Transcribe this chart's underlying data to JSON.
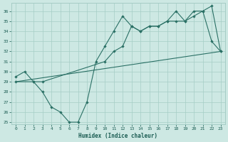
{
  "xlabel": "Humidex (Indice chaleur)",
  "bg_color": "#cde8e3",
  "grid_color": "#a5cdc6",
  "line_color": "#2a7065",
  "xlim": [
    -0.5,
    23.5
  ],
  "ylim": [
    24.8,
    36.8
  ],
  "xticks": [
    0,
    1,
    2,
    3,
    4,
    5,
    6,
    7,
    8,
    9,
    10,
    11,
    12,
    13,
    14,
    15,
    16,
    17,
    18,
    19,
    20,
    21,
    22,
    23
  ],
  "yticks": [
    25,
    26,
    27,
    28,
    29,
    30,
    31,
    32,
    33,
    34,
    35,
    36
  ],
  "curve1_x": [
    0,
    1,
    2,
    3,
    4,
    5,
    6,
    7,
    8,
    9,
    10,
    11,
    12,
    13,
    14,
    15,
    16,
    17,
    18,
    19,
    20,
    21,
    22,
    23
  ],
  "curve1_y": [
    29.5,
    30.0,
    29.0,
    28.0,
    26.5,
    26.0,
    25.0,
    25.0,
    27.0,
    31.0,
    32.5,
    34.0,
    35.5,
    34.5,
    34.0,
    34.5,
    34.5,
    35.0,
    36.0,
    35.0,
    36.0,
    36.0,
    33.0,
    32.0
  ],
  "curve2_x": [
    0,
    2,
    3,
    10,
    11,
    12,
    13,
    14,
    15,
    16,
    17,
    18,
    19,
    20,
    21,
    22,
    23
  ],
  "curve2_y": [
    29.0,
    29.0,
    29.0,
    31.0,
    32.0,
    32.5,
    34.5,
    34.0,
    34.5,
    34.5,
    35.0,
    35.0,
    35.0,
    35.5,
    36.0,
    36.5,
    32.0
  ],
  "curve3_x": [
    0,
    23
  ],
  "curve3_y": [
    29.0,
    32.0
  ]
}
